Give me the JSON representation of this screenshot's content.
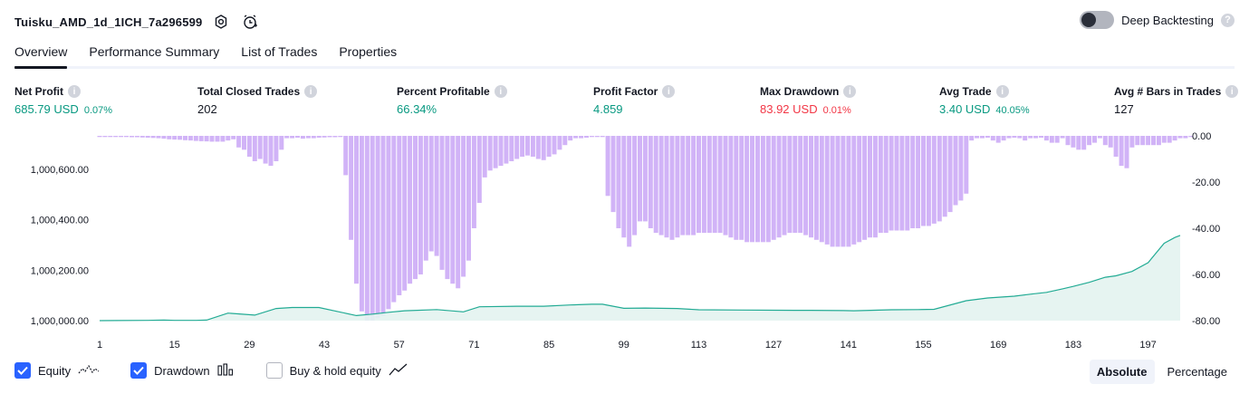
{
  "header": {
    "strategy_title": "Tuisku_AMD_1d_1ICH_7a296599",
    "settings_icon": "settings-icon",
    "alert_icon": "add-alert-icon",
    "deep_backtesting_label": "Deep Backtesting",
    "deep_backtesting_enabled": false
  },
  "tabs": [
    {
      "label": "Overview",
      "active": true
    },
    {
      "label": "Performance Summary",
      "active": false
    },
    {
      "label": "List of Trades",
      "active": false
    },
    {
      "label": "Properties",
      "active": false
    }
  ],
  "stats": {
    "net_profit": {
      "label": "Net Profit",
      "value": "685.79 USD",
      "pct": "0.07%"
    },
    "total_closed_trades": {
      "label": "Total Closed Trades",
      "value": "202"
    },
    "percent_profitable": {
      "label": "Percent Profitable",
      "value": "66.34%"
    },
    "profit_factor": {
      "label": "Profit Factor",
      "value": "4.859"
    },
    "max_drawdown": {
      "label": "Max Drawdown",
      "value": "83.92 USD",
      "pct": "0.01%"
    },
    "avg_trade": {
      "label": "Avg Trade",
      "value": "3.40 USD",
      "pct": "40.05%"
    },
    "avg_bars": {
      "label": "Avg # Bars in Trades",
      "value": "127"
    }
  },
  "colors": {
    "equity_line": "#22ab94",
    "equity_fill": "#e3f3ef",
    "drawdown_bar": "#d1b3f7",
    "positive": "#089981",
    "negative": "#f23645",
    "checkbox": "#2962ff"
  },
  "chart_data": {
    "type": "line",
    "x_ticks": [
      "1",
      "15",
      "29",
      "43",
      "57",
      "71",
      "85",
      "99",
      "113",
      "127",
      "141",
      "155",
      "169",
      "183",
      "197"
    ],
    "left_axis_ticks": [
      "1,000,600.00",
      "1,000,400.00",
      "1,000,200.00",
      "1,000,000.00"
    ],
    "right_axis_ticks": [
      "0.00",
      "-20.00",
      "-40.00",
      "-60.00",
      "-80.00"
    ],
    "left_ylim": [
      1000000,
      1000690
    ],
    "right_ylim": [
      -80,
      0
    ],
    "x_range": [
      1,
      203
    ],
    "series": [
      {
        "name": "Equity",
        "kind": "line",
        "axis": "left",
        "points": [
          [
            1,
            0
          ],
          [
            10,
            1
          ],
          [
            13,
            2
          ],
          [
            15,
            1
          ],
          [
            19,
            1
          ],
          [
            21,
            2
          ],
          [
            25,
            30
          ],
          [
            30,
            22
          ],
          [
            34,
            48
          ],
          [
            37,
            52
          ],
          [
            42,
            52
          ],
          [
            49,
            20
          ],
          [
            52,
            26
          ],
          [
            55,
            33
          ],
          [
            58,
            39
          ],
          [
            64,
            44
          ],
          [
            69,
            35
          ],
          [
            72,
            55
          ],
          [
            79,
            57
          ],
          [
            84,
            57
          ],
          [
            89,
            62
          ],
          [
            93,
            65
          ],
          [
            95,
            65
          ],
          [
            99,
            49
          ],
          [
            103,
            50
          ],
          [
            109,
            48
          ],
          [
            113,
            43
          ],
          [
            121,
            42
          ],
          [
            131,
            41
          ],
          [
            134,
            41
          ],
          [
            140,
            40
          ],
          [
            142,
            39
          ],
          [
            149,
            43
          ],
          [
            154,
            44
          ],
          [
            157,
            45
          ],
          [
            163,
            79
          ],
          [
            167,
            90
          ],
          [
            172,
            97
          ],
          [
            175,
            105
          ],
          [
            178,
            112
          ],
          [
            181,
            126
          ],
          [
            183,
            136
          ],
          [
            186,
            152
          ],
          [
            189,
            172
          ],
          [
            191,
            178
          ],
          [
            194,
            195
          ],
          [
            197,
            230
          ],
          [
            200,
            307
          ],
          [
            202,
            330
          ],
          [
            203,
            338
          ]
        ]
      },
      {
        "name": "Drawdown",
        "kind": "bar",
        "axis": "right",
        "values": [
          -0.5,
          -0.5,
          -0.5,
          -0.5,
          -0.5,
          -0.5,
          -0.6,
          -0.6,
          -0.7,
          -0.8,
          -0.9,
          -1,
          -1.2,
          -1.5,
          -1.6,
          -1.7,
          -1.9,
          -2,
          -2.2,
          -2.3,
          -2.4,
          -2.5,
          -2.5,
          -2.5,
          -2,
          -1.5,
          -5,
          -6,
          -9,
          -11,
          -10,
          -12,
          -13,
          -11,
          -6,
          -1,
          -1,
          -0.8,
          -1.2,
          -1,
          -1,
          -0.8,
          -0.7,
          -0.6,
          -0.6,
          -0.5,
          -17,
          -45,
          -64,
          -76,
          -80,
          -80,
          -79,
          -78,
          -75,
          -72,
          -69,
          -67,
          -64,
          -62,
          -60,
          -54,
          -50,
          -52,
          -58,
          -62,
          -64,
          -66,
          -61,
          -54,
          -40,
          -29,
          -18,
          -15,
          -14,
          -13,
          -12,
          -11,
          -10,
          -9,
          -8.5,
          -9,
          -10,
          -10.5,
          -9,
          -8,
          -6,
          -4,
          -2,
          -1,
          -1,
          -0.8,
          -0.5,
          -0.5,
          -0.5,
          -26,
          -33,
          -40,
          -44,
          -48,
          -43,
          -37,
          -37,
          -40,
          -42,
          -43,
          -44,
          -45,
          -44,
          -43,
          -43,
          -43,
          -42,
          -42,
          -42,
          -42,
          -42,
          -43,
          -44,
          -45,
          -45,
          -46,
          -46,
          -46,
          -46,
          -46,
          -45,
          -44,
          -43,
          -42,
          -42,
          -42,
          -43,
          -44,
          -45,
          -46,
          -47,
          -48,
          -48,
          -48,
          -48,
          -47,
          -46,
          -45,
          -44,
          -44,
          -42,
          -42,
          -41,
          -41,
          -41,
          -41,
          -40,
          -40,
          -39,
          -39,
          -38,
          -37,
          -35,
          -33,
          -30,
          -28,
          -25,
          -2,
          -1,
          -1,
          -0.8,
          -2,
          -3,
          -2,
          -1,
          -0.8,
          -1,
          -2,
          -1,
          -1,
          -0.8,
          -2,
          -3,
          -3,
          -1,
          -4,
          -5,
          -6,
          -6,
          -4,
          -3,
          -1,
          -4,
          -5,
          -9,
          -13,
          -14,
          -5,
          -4,
          -4,
          -4,
          -4,
          -4,
          -3,
          -3,
          -2,
          -1,
          -1,
          -0.5
        ]
      }
    ]
  },
  "legend": {
    "equity": {
      "label": "Equity",
      "checked": true,
      "icon": "equity-line-icon"
    },
    "drawdown": {
      "label": "Drawdown",
      "checked": true,
      "icon": "drawdown-bars-icon"
    },
    "buy_hold": {
      "label": "Buy & hold equity",
      "checked": false,
      "icon": "buy-hold-line-icon"
    }
  },
  "modes": [
    {
      "label": "Absolute",
      "active": true
    },
    {
      "label": "Percentage",
      "active": false
    }
  ]
}
